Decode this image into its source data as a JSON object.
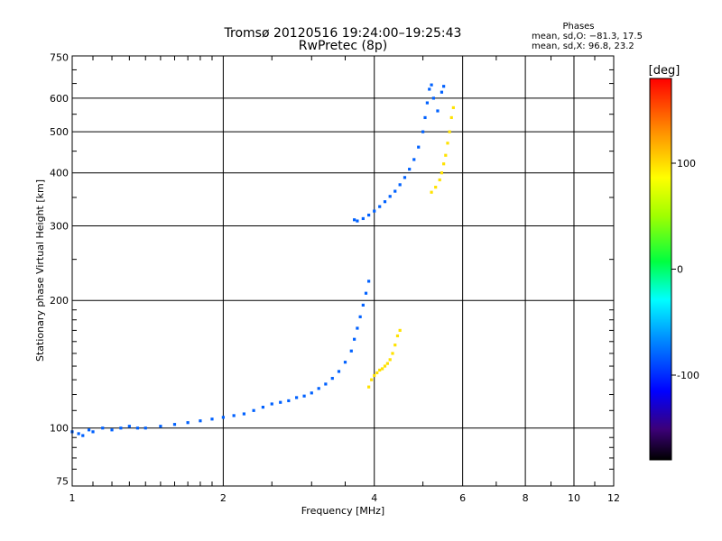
{
  "chart_data": {
    "type": "scatter",
    "title": "Tromsø 20120516 19:24:00–19:25:43",
    "subtitle": "RwPretec (8p)",
    "xlabel": "Frequency [MHz]",
    "ylabel": "Stationary phase Virtual Height [km]",
    "x_scale": "log",
    "y_scale": "log",
    "xlim": [
      1,
      12
    ],
    "ylim": [
      73,
      755
    ],
    "x_ticks": [
      1,
      2,
      4,
      6,
      8,
      10,
      12
    ],
    "x_tick_labels": [
      "1",
      "2",
      "4",
      "6",
      "8",
      "10",
      "12"
    ],
    "y_ticks": [
      75,
      100,
      200,
      300,
      400,
      500,
      600,
      750
    ],
    "y_tick_labels": [
      "75",
      "100",
      "200",
      "300",
      "400",
      "500",
      "600",
      "750"
    ],
    "grid": true,
    "phases_header": "Phases",
    "phase_stats": [
      "mean, sd,O: −81.3, 17.5",
      "mean, sd,X:  96.8, 23.2"
    ],
    "colorbar": {
      "label": "[deg]",
      "range": [
        -180,
        180
      ],
      "ticks": [
        -100,
        0,
        100
      ],
      "tick_labels": [
        "-100",
        "0",
        "100"
      ]
    },
    "series": [
      {
        "name": "O",
        "color_by_phase": -81.3,
        "points": [
          [
            1.0,
            98
          ],
          [
            1.03,
            97
          ],
          [
            1.05,
            96
          ],
          [
            1.08,
            99
          ],
          [
            1.1,
            98
          ],
          [
            1.15,
            100
          ],
          [
            1.2,
            99
          ],
          [
            1.25,
            100
          ],
          [
            1.3,
            101
          ],
          [
            1.35,
            100
          ],
          [
            1.4,
            100
          ],
          [
            1.5,
            101
          ],
          [
            1.6,
            102
          ],
          [
            1.7,
            103
          ],
          [
            1.8,
            104
          ],
          [
            1.9,
            105
          ],
          [
            2.0,
            106
          ],
          [
            2.1,
            107
          ],
          [
            2.2,
            108
          ],
          [
            2.3,
            110
          ],
          [
            2.4,
            112
          ],
          [
            2.5,
            114
          ],
          [
            2.6,
            115
          ],
          [
            2.7,
            116
          ],
          [
            2.8,
            118
          ],
          [
            2.9,
            119
          ],
          [
            3.0,
            121
          ],
          [
            3.1,
            124
          ],
          [
            3.2,
            127
          ],
          [
            3.3,
            131
          ],
          [
            3.4,
            136
          ],
          [
            3.5,
            143
          ],
          [
            3.6,
            152
          ],
          [
            3.65,
            162
          ],
          [
            3.7,
            172
          ],
          [
            3.75,
            183
          ],
          [
            3.8,
            195
          ],
          [
            3.85,
            208
          ],
          [
            3.9,
            222
          ],
          [
            3.65,
            310
          ],
          [
            3.7,
            308
          ],
          [
            3.8,
            312
          ],
          [
            3.9,
            318
          ],
          [
            4.0,
            325
          ],
          [
            4.1,
            333
          ],
          [
            4.2,
            342
          ],
          [
            4.3,
            352
          ],
          [
            4.4,
            362
          ],
          [
            4.5,
            375
          ],
          [
            4.6,
            390
          ],
          [
            4.7,
            408
          ],
          [
            4.8,
            430
          ],
          [
            4.9,
            460
          ],
          [
            5.0,
            500
          ],
          [
            5.05,
            540
          ],
          [
            5.1,
            585
          ],
          [
            5.15,
            630
          ],
          [
            5.2,
            645
          ],
          [
            5.25,
            600
          ],
          [
            5.35,
            560
          ],
          [
            5.45,
            620
          ],
          [
            5.5,
            640
          ]
        ]
      },
      {
        "name": "X",
        "color_by_phase": 96.8,
        "points": [
          [
            3.9,
            125
          ],
          [
            3.95,
            130
          ],
          [
            4.0,
            133
          ],
          [
            4.05,
            135
          ],
          [
            4.1,
            137
          ],
          [
            4.15,
            138
          ],
          [
            4.2,
            140
          ],
          [
            4.25,
            142
          ],
          [
            4.3,
            145
          ],
          [
            4.35,
            150
          ],
          [
            4.4,
            157
          ],
          [
            4.45,
            165
          ],
          [
            4.5,
            170
          ],
          [
            5.2,
            360
          ],
          [
            5.3,
            370
          ],
          [
            5.4,
            385
          ],
          [
            5.45,
            400
          ],
          [
            5.5,
            420
          ],
          [
            5.55,
            440
          ],
          [
            5.6,
            470
          ],
          [
            5.65,
            500
          ],
          [
            5.7,
            540
          ],
          [
            5.75,
            570
          ]
        ]
      }
    ]
  }
}
